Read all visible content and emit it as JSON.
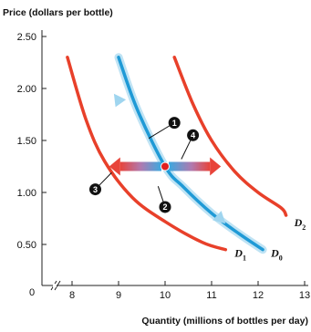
{
  "chart_data": {
    "type": "line",
    "ylabel": "Price (dollars per bottle)",
    "xlabel": "Quantity (millions of bottles per day)",
    "origin_label": "0",
    "xlim": [
      7.5,
      13.3
    ],
    "ylim": [
      0.25,
      2.6
    ],
    "x_ticks": [
      {
        "value": 8,
        "label": "8"
      },
      {
        "value": 9,
        "label": "9"
      },
      {
        "value": 10,
        "label": "10"
      },
      {
        "value": 11,
        "label": "11"
      },
      {
        "value": 12,
        "label": "12"
      },
      {
        "value": 13,
        "label": "13"
      }
    ],
    "y_ticks": [
      {
        "value": 0.5,
        "label": "0.50"
      },
      {
        "value": 1.0,
        "label": "1.00"
      },
      {
        "value": 1.5,
        "label": "1.50"
      },
      {
        "value": 2.0,
        "label": "2.00"
      },
      {
        "value": 2.5,
        "label": "2.50"
      }
    ],
    "series": [
      {
        "name": "D₁",
        "label_main": "D",
        "label_sub": "1",
        "color": "#e8402a",
        "points": [
          [
            7.9,
            2.3
          ],
          [
            8.3,
            1.7
          ],
          [
            8.7,
            1.3
          ],
          [
            9.3,
            0.95
          ],
          [
            10.0,
            0.72
          ],
          [
            10.8,
            0.52
          ],
          [
            11.3,
            0.45
          ]
        ]
      },
      {
        "name": "D₀",
        "label_main": "D",
        "label_sub": "0",
        "color": "#1f9ad6",
        "points": [
          [
            9.0,
            2.3
          ],
          [
            9.4,
            1.8
          ],
          [
            10.0,
            1.25
          ],
          [
            10.4,
            1.05
          ],
          [
            11.0,
            0.8
          ],
          [
            11.6,
            0.6
          ],
          [
            12.1,
            0.45
          ]
        ]
      },
      {
        "name": "D₂",
        "label_main": "D",
        "label_sub": "2",
        "color": "#e8402a",
        "points": [
          [
            10.2,
            2.3
          ],
          [
            10.6,
            1.85
          ],
          [
            11.0,
            1.5
          ],
          [
            11.5,
            1.2
          ],
          [
            12.0,
            1.0
          ],
          [
            12.5,
            0.85
          ],
          [
            12.6,
            0.78
          ]
        ]
      }
    ],
    "equilibrium_point": {
      "x": 10.0,
      "y": 1.25,
      "color": "#e02020"
    },
    "arrows": [
      {
        "id": "movement-along-curve",
        "from": [
          10.0,
          1.25
        ],
        "to_upper": [
          8.9,
          1.95
        ],
        "to_lower": [
          11.3,
          0.7
        ]
      },
      {
        "id": "decrease-demand",
        "from": [
          10.0,
          1.25
        ],
        "to": [
          8.8,
          1.25
        ]
      },
      {
        "id": "increase-demand",
        "from": [
          10.0,
          1.25
        ],
        "to": [
          11.2,
          1.25
        ]
      }
    ],
    "markers": [
      {
        "label": "1",
        "x": 10.2,
        "y": 1.67
      },
      {
        "label": "2",
        "x": 10.0,
        "y": 0.86
      },
      {
        "label": "3",
        "x": 8.5,
        "y": 1.03
      },
      {
        "label": "4",
        "x": 10.6,
        "y": 1.55
      }
    ]
  }
}
